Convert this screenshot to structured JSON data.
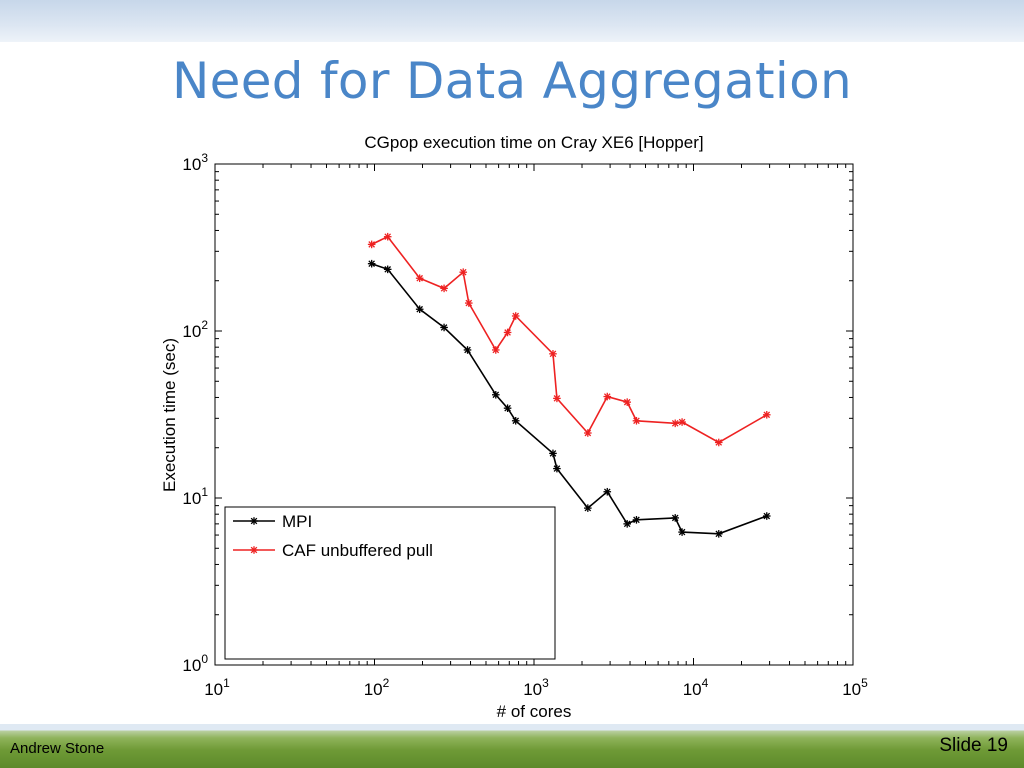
{
  "slide": {
    "title": "Need for Data Aggregation",
    "author": "Andrew Stone",
    "slide_label": "Slide 19"
  },
  "chart_data": {
    "type": "line",
    "title": "CGpop execution time  on Cray XE6 [Hopper]",
    "xlabel": "# of cores",
    "ylabel": "Execution time (sec)",
    "xscale": "log",
    "yscale": "log",
    "xlim": [
      10,
      100000
    ],
    "ylim": [
      1,
      1000
    ],
    "x_ticks": [
      {
        "base": "10",
        "exp": "1"
      },
      {
        "base": "10",
        "exp": "2"
      },
      {
        "base": "10",
        "exp": "3"
      },
      {
        "base": "10",
        "exp": "4"
      },
      {
        "base": "10",
        "exp": "5"
      }
    ],
    "y_ticks": [
      {
        "base": "10",
        "exp": "0"
      },
      {
        "base": "10",
        "exp": "1"
      },
      {
        "base": "10",
        "exp": "2"
      },
      {
        "base": "10",
        "exp": "3"
      }
    ],
    "grid": false,
    "legend_position": "bottom-left",
    "series": [
      {
        "name": "MPI",
        "color": "#000000",
        "marker": "asterisk",
        "points": [
          [
            96,
            253
          ],
          [
            121,
            234
          ],
          [
            192,
            135
          ],
          [
            273,
            105
          ],
          [
            383,
            77
          ],
          [
            576,
            41.5
          ],
          [
            683,
            34.5
          ],
          [
            768,
            29
          ],
          [
            1315,
            18.5
          ],
          [
            1392,
            15
          ],
          [
            2175,
            8.7
          ],
          [
            2880,
            10.9
          ],
          [
            3840,
            7
          ],
          [
            4389,
            7.4
          ],
          [
            7680,
            7.6
          ],
          [
            8480,
            6.25
          ],
          [
            14400,
            6.1
          ],
          [
            28800,
            7.8
          ]
        ]
      },
      {
        "name": "CAF unbuffered pull",
        "color": "#ee2222",
        "marker": "asterisk",
        "points": [
          [
            96,
            330
          ],
          [
            121,
            367
          ],
          [
            192,
            207
          ],
          [
            273,
            180
          ],
          [
            360,
            225
          ],
          [
            390,
            147
          ],
          [
            576,
            77
          ],
          [
            683,
            98
          ],
          [
            768,
            123
          ],
          [
            1315,
            73
          ],
          [
            1392,
            39.5
          ],
          [
            2175,
            24.5
          ],
          [
            2880,
            40.5
          ],
          [
            3840,
            37.5
          ],
          [
            4389,
            29
          ],
          [
            7680,
            28
          ],
          [
            8480,
            28.5
          ],
          [
            14400,
            21.5
          ],
          [
            28800,
            31.5
          ]
        ]
      }
    ]
  }
}
